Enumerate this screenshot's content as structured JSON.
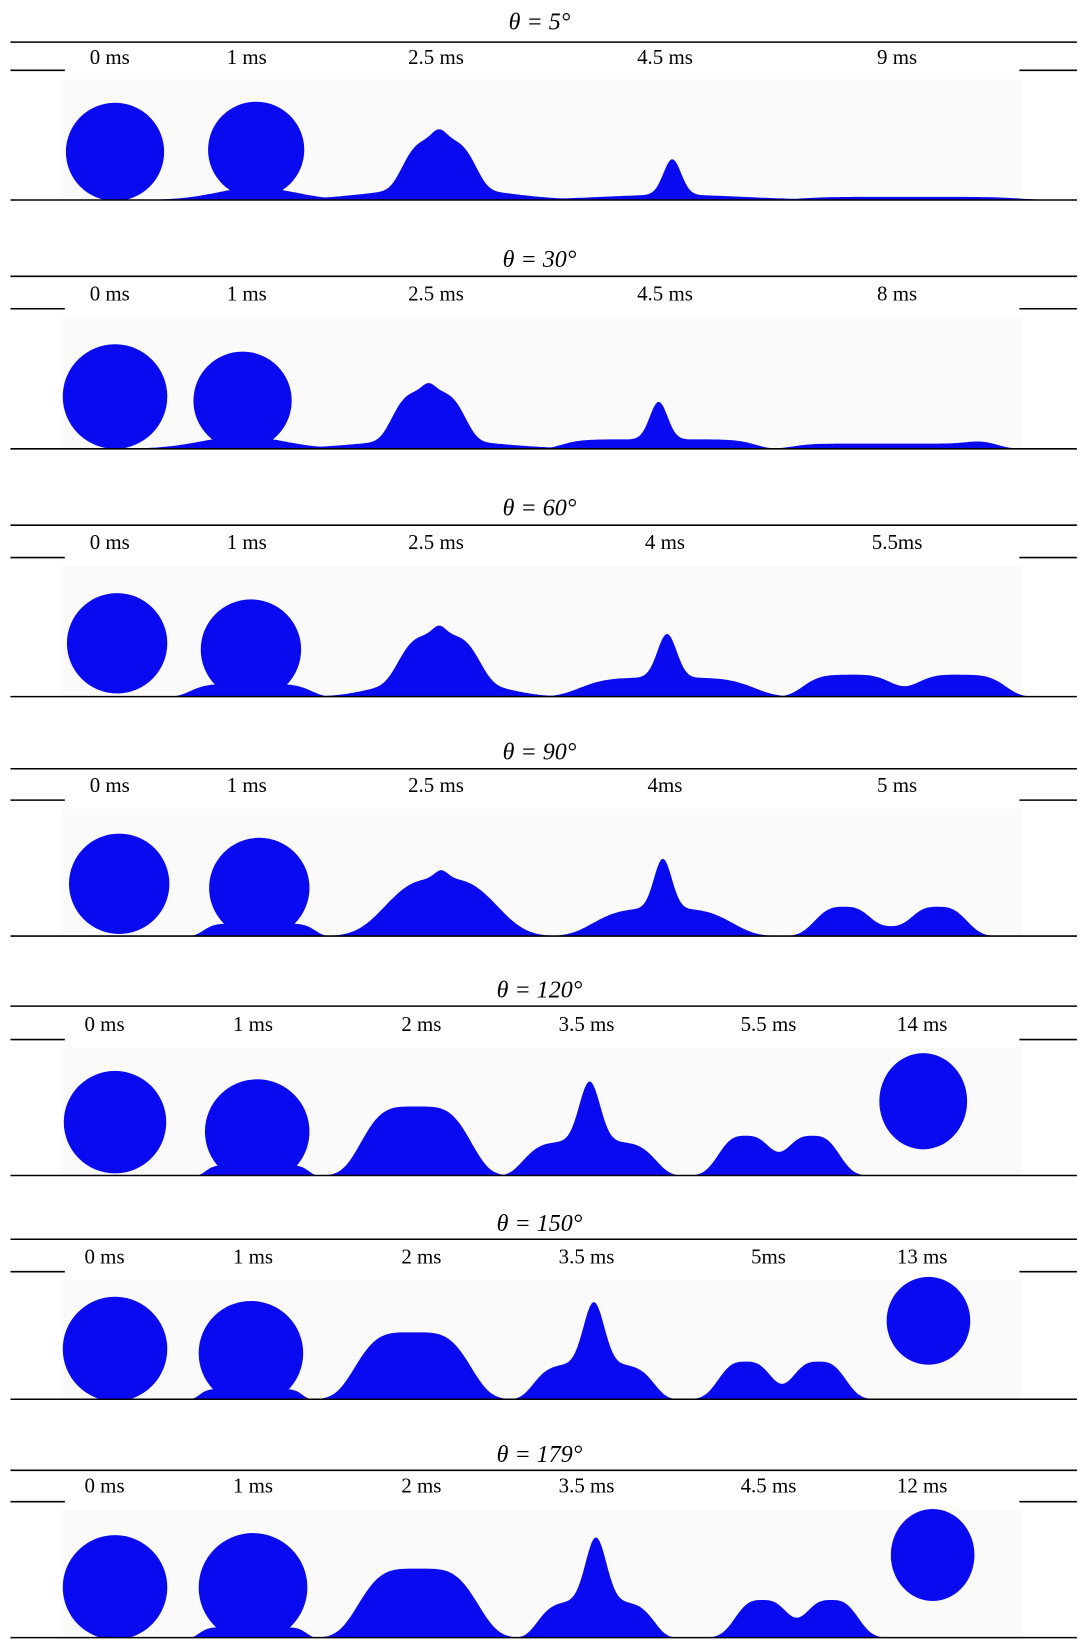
{
  "panels": [
    {
      "angle": "θ = 5°",
      "times": [
        "0 ms",
        "1 ms",
        "2.5 ms",
        "4.5 ms",
        "9 ms"
      ]
    },
    {
      "angle": "θ = 30°",
      "times": [
        "0 ms",
        "1 ms",
        "2.5 ms",
        "4.5 ms",
        "8 ms"
      ]
    },
    {
      "angle": "θ = 60°",
      "times": [
        "0 ms",
        "1 ms",
        "2.5 ms",
        "4 ms",
        "5.5ms"
      ]
    },
    {
      "angle": "θ = 90°",
      "times": [
        "0 ms",
        "1 ms",
        "2.5 ms",
        "4ms",
        "5 ms"
      ]
    },
    {
      "angle": "θ = 120°",
      "times": [
        "0 ms",
        "1 ms",
        "2 ms",
        "3.5 ms",
        "5.5 ms",
        "14 ms"
      ]
    },
    {
      "angle": "θ = 150°",
      "times": [
        "0 ms",
        "1 ms",
        "2 ms",
        "3.5 ms",
        "5ms",
        "13 ms"
      ]
    },
    {
      "angle": "θ = 179°",
      "times": [
        "0 ms",
        "1 ms",
        "2 ms",
        "3.5 ms",
        "4.5 ms",
        "12 ms"
      ]
    }
  ]
}
